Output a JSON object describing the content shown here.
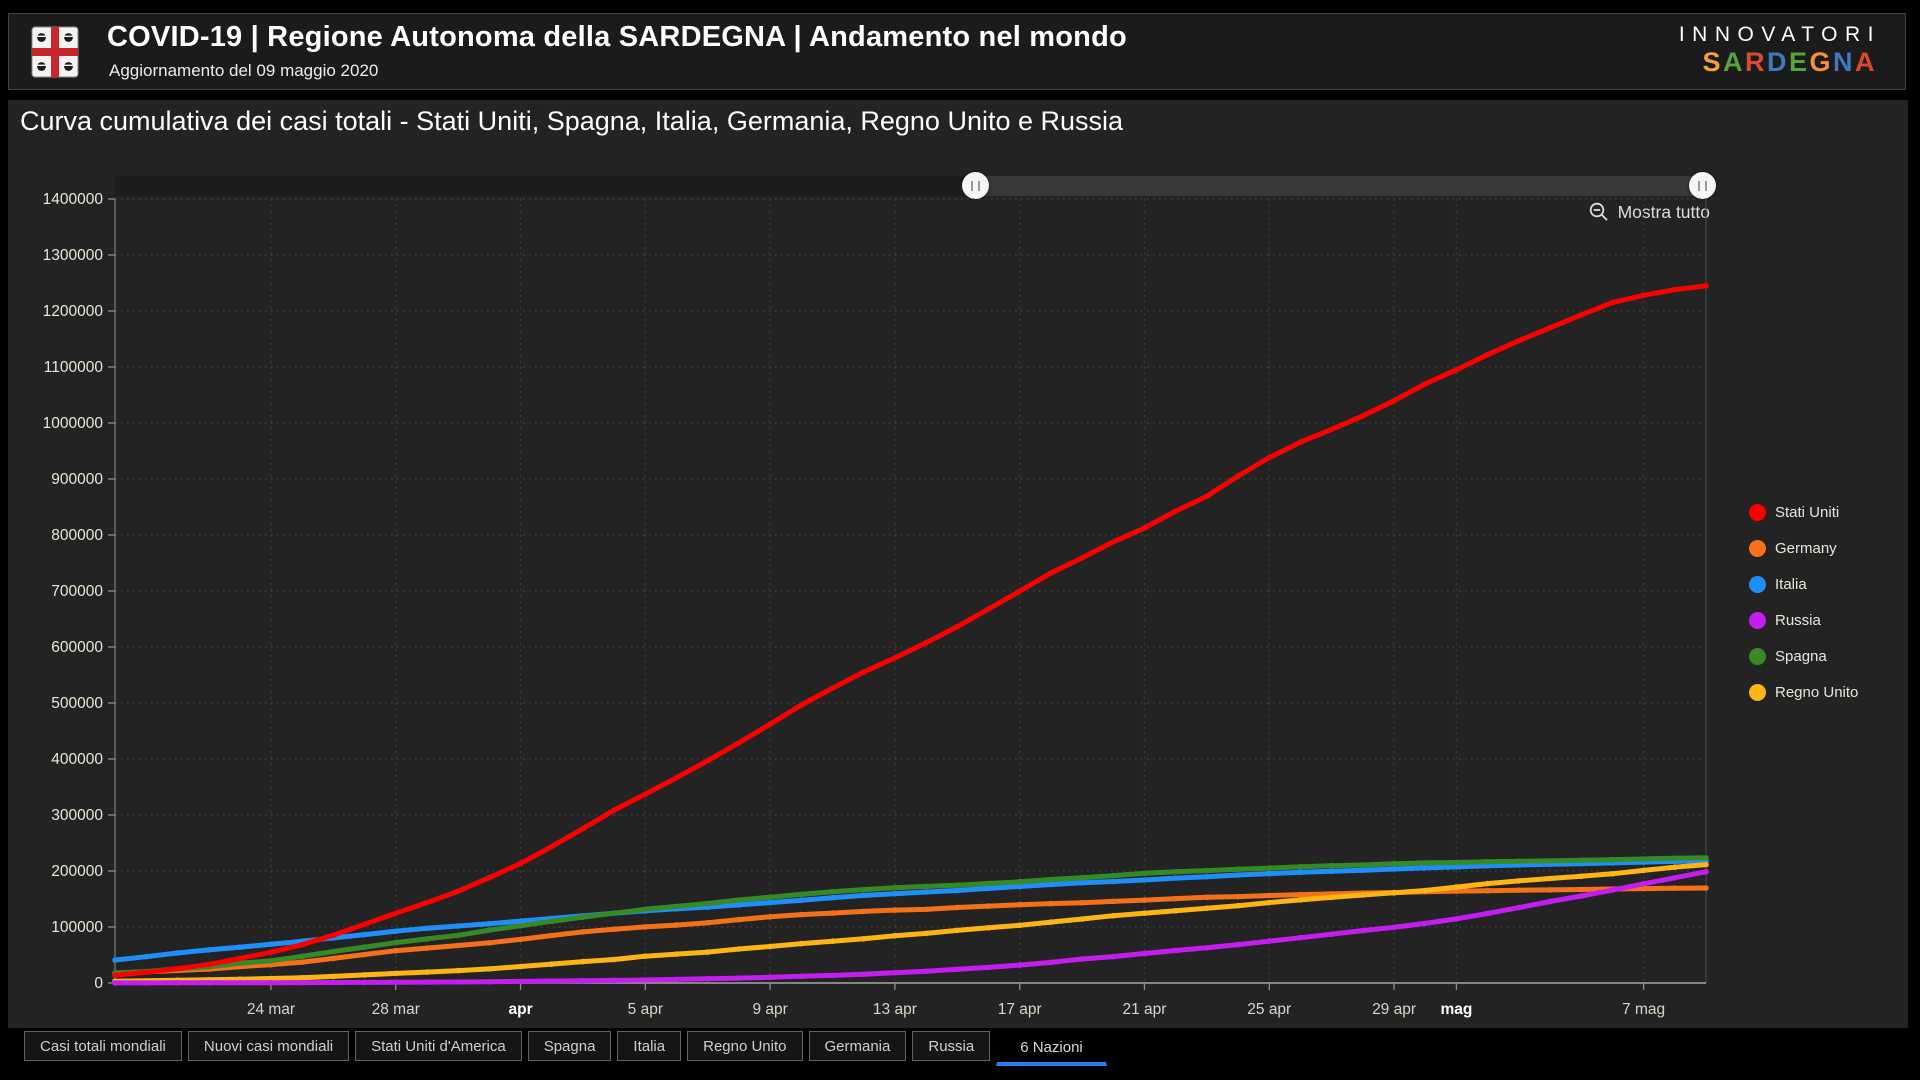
{
  "header": {
    "title": "COVID-19 | Regione Autonoma della SARDEGNA | Andamento nel mondo",
    "subtitle": "Aggiornamento del 09 maggio 2020",
    "logo_icon": "sardegna-coat-of-arms",
    "brand": {
      "top": "INNOVATORI",
      "word": "SARDEGNA",
      "letter_colors": [
        "#f2a33c",
        "#59a23c",
        "#d94b2e",
        "#3f79c2",
        "#59a23c",
        "#f2913c",
        "#3f79c2",
        "#d94b2e"
      ]
    }
  },
  "panel": {
    "title": "Curva cumulativa dei casi totali - Stati Uniti, Spagna, Italia, Germania, Regno Unito e Russia",
    "show_all_label": "Mostra tutto",
    "zoom_out_icon": "magnifier-minus-icon",
    "slider_handle_glyph": "||"
  },
  "chart_data": {
    "type": "line",
    "title": "Curva cumulativa dei casi totali - Stati Uniti, Spagna, Italia, Germania, Regno Unito e Russia",
    "ylabel": "",
    "xlabel": "",
    "ylim": [
      0,
      1400000
    ],
    "y_ticks": [
      0,
      100000,
      200000,
      300000,
      400000,
      500000,
      600000,
      700000,
      800000,
      900000,
      1000000,
      1100000,
      1200000,
      1300000,
      1400000
    ],
    "grid": "dotted",
    "legend_position": "right",
    "n_points": 52,
    "x_ticks": [
      {
        "label": "24 mar",
        "day": 5,
        "bold": false
      },
      {
        "label": "28 mar",
        "day": 9,
        "bold": false
      },
      {
        "label": "apr",
        "day": 13,
        "bold": true
      },
      {
        "label": "5 apr",
        "day": 17,
        "bold": false
      },
      {
        "label": "9 apr",
        "day": 21,
        "bold": false
      },
      {
        "label": "13 apr",
        "day": 25,
        "bold": false
      },
      {
        "label": "17 apr",
        "day": 29,
        "bold": false
      },
      {
        "label": "21 apr",
        "day": 33,
        "bold": false
      },
      {
        "label": "25 apr",
        "day": 37,
        "bold": false
      },
      {
        "label": "29 apr",
        "day": 41,
        "bold": false
      },
      {
        "label": "mag",
        "day": 43,
        "bold": true
      },
      {
        "label": "7 mag",
        "day": 49,
        "bold": false
      }
    ],
    "series": [
      {
        "name": "Stati Uniti",
        "color": "#fa0000",
        "values": [
          14000,
          19100,
          25500,
          33300,
          43800,
          54900,
          68400,
          85600,
          104800,
          124700,
          143500,
          163800,
          188200,
          213400,
          243600,
          275600,
          308800,
          337100,
          366600,
          397000,
          429000,
          462100,
          496500,
          526400,
          555300,
          580600,
          607700,
          636300,
          667800,
          699700,
          732200,
          759100,
          787900,
          812500,
          842600,
          869200,
          905400,
          938200,
          965900,
          988500,
          1012600,
          1039900,
          1069800,
          1095000,
          1122000,
          1147000,
          1170000,
          1193000,
          1215000,
          1228000,
          1238000,
          1245000
        ]
      },
      {
        "name": "Germany",
        "color": "#f4701b",
        "values": [
          16600,
          19800,
          22400,
          24900,
          29100,
          32900,
          37300,
          43900,
          50900,
          57700,
          62400,
          66900,
          71800,
          77900,
          84800,
          91200,
          96100,
          100100,
          103400,
          107700,
          113300,
          118200,
          122200,
          124900,
          127800,
          130100,
          131400,
          134800,
          137400,
          139900,
          141700,
          143400,
          145700,
          148000,
          150700,
          153100,
          154200,
          156300,
          157800,
          159100,
          160800,
          161500,
          163000,
          164100,
          164800,
          165700,
          166200,
          167000,
          167800,
          168600,
          169200,
          169600
        ]
      },
      {
        "name": "Italia",
        "color": "#1f8ef9",
        "values": [
          41000,
          47000,
          53600,
          59100,
          63900,
          69200,
          74400,
          80600,
          86500,
          92500,
          97700,
          101700,
          105800,
          110600,
          115200,
          119800,
          124600,
          128900,
          132500,
          135600,
          139400,
          143600,
          147600,
          152300,
          156400,
          159500,
          162500,
          165200,
          168900,
          172400,
          175900,
          178900,
          181200,
          183900,
          187300,
          189900,
          192900,
          195400,
          197700,
          199400,
          201500,
          203600,
          205500,
          207400,
          209300,
          210700,
          211900,
          213000,
          214500,
          215900,
          217200,
          218300
        ]
      },
      {
        "name": "Russia",
        "color": "#c31df0",
        "values": [
          200,
          250,
          310,
          370,
          440,
          500,
          660,
          840,
          1040,
          1260,
          1530,
          1840,
          2340,
          2780,
          3550,
          4150,
          4730,
          5390,
          6340,
          7500,
          8670,
          10130,
          11920,
          13580,
          15770,
          18330,
          21100,
          24490,
          27940,
          32010,
          36790,
          42850,
          47120,
          52760,
          57990,
          62770,
          68620,
          74590,
          80950,
          87150,
          93560,
          99400,
          106500,
          114400,
          124100,
          134700,
          145300,
          155400,
          165900,
          177200,
          187900,
          198700
        ]
      },
      {
        "name": "Spagna",
        "color": "#368a26",
        "values": [
          18000,
          20400,
          25400,
          28800,
          35100,
          39700,
          47600,
          56200,
          64100,
          72200,
          78800,
          85200,
          94400,
          102100,
          110200,
          117700,
          124700,
          131600,
          136700,
          141900,
          148200,
          153200,
          158300,
          163000,
          166800,
          170100,
          172500,
          174600,
          177600,
          180700,
          184900,
          188100,
          191700,
          195900,
          198600,
          200800,
          202990,
          205000,
          207600,
          209500,
          210800,
          212900,
          214500,
          215200,
          216600,
          217500,
          218000,
          219300,
          220300,
          221400,
          222900,
          223600
        ]
      },
      {
        "name": "Regno Unito",
        "color": "#fcb514",
        "values": [
          3300,
          4000,
          5000,
          5700,
          6700,
          8100,
          9500,
          11700,
          14500,
          17100,
          19500,
          22100,
          25200,
          29500,
          33700,
          38200,
          41900,
          47800,
          51600,
          55200,
          60700,
          65100,
          70300,
          74600,
          79000,
          84300,
          88600,
          93900,
          98500,
          103100,
          108700,
          114200,
          120100,
          124700,
          129000,
          133500,
          138100,
          143500,
          148400,
          152800,
          157100,
          161100,
          165200,
          171300,
          177500,
          182300,
          186600,
          190600,
          195000,
          201100,
          206700,
          211400
        ]
      }
    ]
  },
  "tabs": [
    {
      "label": "Casi totali mondiali",
      "active": false
    },
    {
      "label": "Nuovi casi mondiali",
      "active": false
    },
    {
      "label": "Stati Uniti d'America",
      "active": false
    },
    {
      "label": "Spagna",
      "active": false
    },
    {
      "label": "Italia",
      "active": false
    },
    {
      "label": "Regno Unito",
      "active": false
    },
    {
      "label": "Germania",
      "active": false
    },
    {
      "label": "Russia",
      "active": false
    },
    {
      "label": "6 Nazioni",
      "active": true
    }
  ]
}
